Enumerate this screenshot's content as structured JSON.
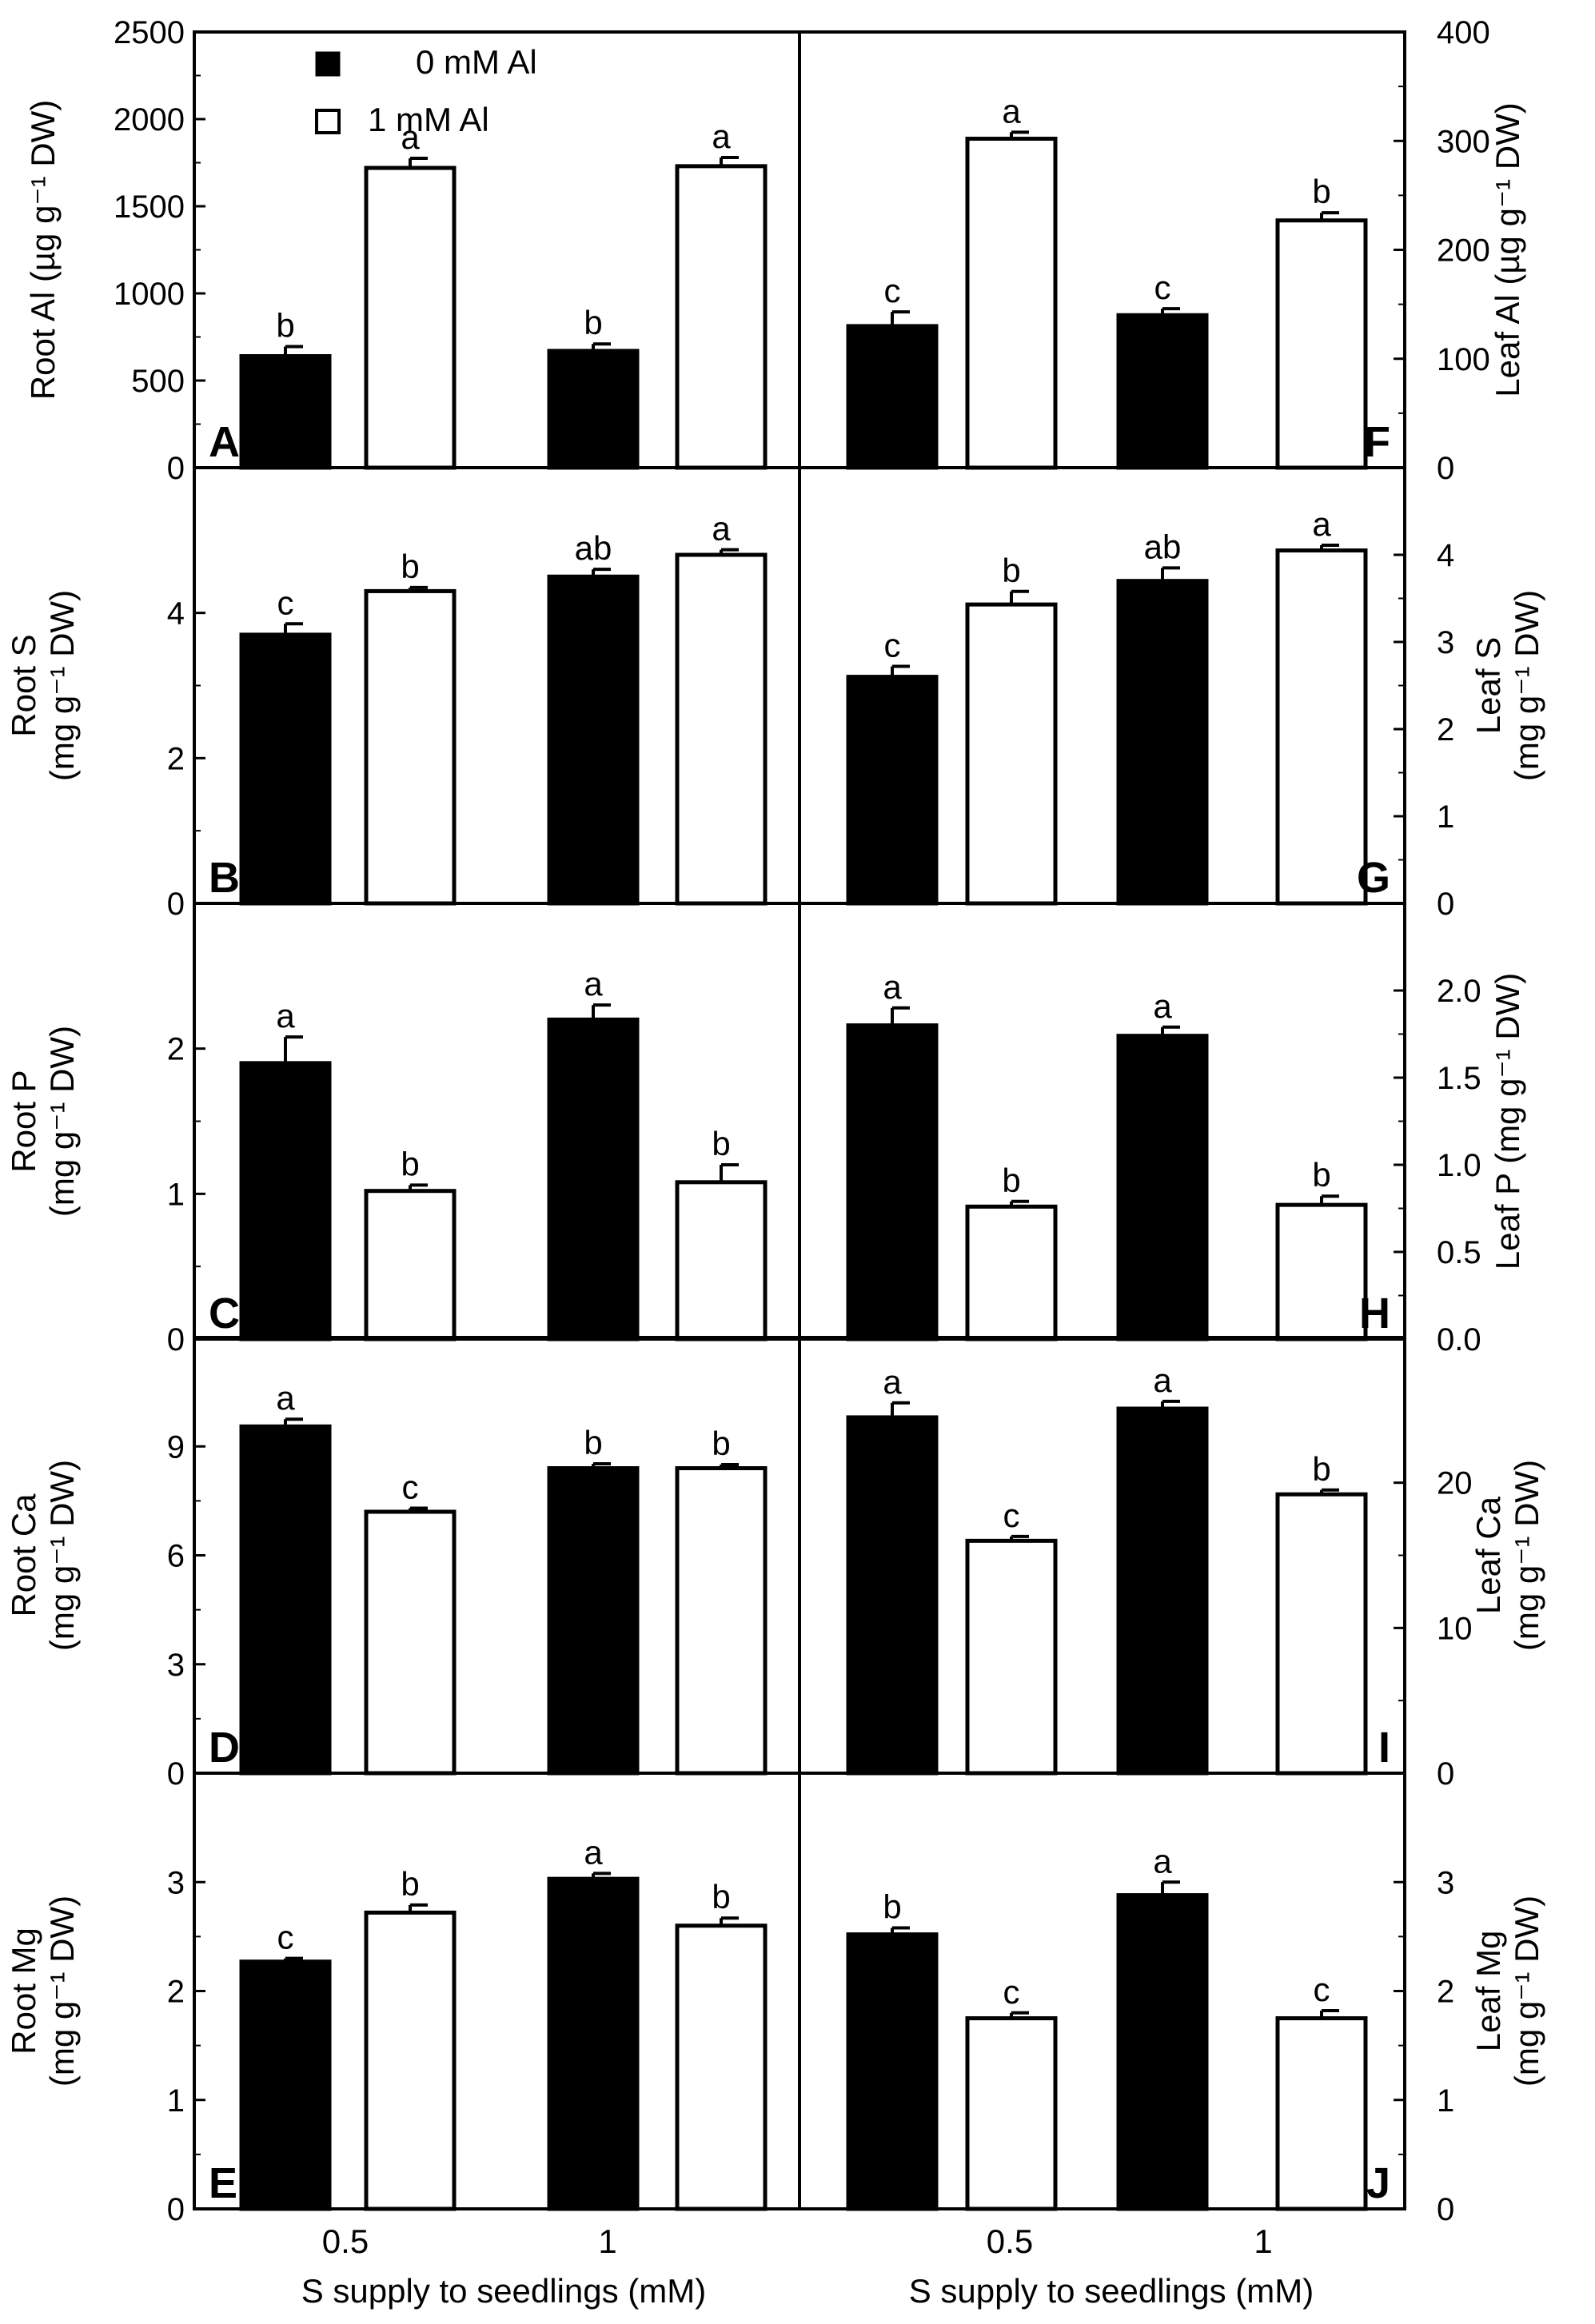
{
  "legend": [
    {
      "name": "0 mM Al",
      "fill": "#000000"
    },
    {
      "name": "1 mM Al",
      "fill": "#ffffff"
    }
  ],
  "x_categories": [
    "0.5",
    "1"
  ],
  "x_axis_title": "S supply to seedlings (mM)",
  "chart_data": [
    {
      "type": "bar",
      "panel": "A",
      "side": "left",
      "tissue": "Root",
      "ylabel_lines": [
        "Root Al (µg g⁻¹ DW)"
      ],
      "ylim": [
        0,
        2500
      ],
      "yticks": [
        "0",
        "500",
        "1000",
        "1500",
        "2000",
        "2500"
      ],
      "categories": [
        "0.5",
        "1"
      ],
      "series": [
        {
          "name": "0 mM Al",
          "values": [
            640,
            670
          ],
          "errors": [
            55,
            40
          ],
          "letters": [
            "b",
            "b"
          ]
        },
        {
          "name": "1 mM Al",
          "values": [
            1720,
            1730
          ],
          "errors": [
            55,
            50
          ],
          "letters": [
            "a",
            "a"
          ]
        }
      ]
    },
    {
      "type": "bar",
      "panel": "B",
      "side": "left",
      "tissue": "Root",
      "ylabel_lines": [
        "Root S",
        "(mg g⁻¹ DW)"
      ],
      "ylim": [
        0,
        6
      ],
      "yticks": [
        "0",
        "2",
        "4"
      ],
      "categories": [
        "0.5",
        "1"
      ],
      "series": [
        {
          "name": "0 mM Al",
          "values": [
            3.7,
            4.5
          ],
          "errors": [
            0.15,
            0.1
          ],
          "letters": [
            "c",
            "ab"
          ]
        },
        {
          "name": "1 mM Al",
          "values": [
            4.3,
            4.8
          ],
          "errors": [
            0.05,
            0.07
          ],
          "letters": [
            "b",
            "a"
          ]
        }
      ]
    },
    {
      "type": "bar",
      "panel": "C",
      "side": "left",
      "tissue": "Root",
      "ylabel_lines": [
        "Root P",
        "(mg g⁻¹ DW)"
      ],
      "ylim": [
        0,
        3
      ],
      "yticks": [
        "0",
        "1",
        "2"
      ],
      "categories": [
        "0.5",
        "1"
      ],
      "series": [
        {
          "name": "0 mM Al",
          "values": [
            1.9,
            2.2
          ],
          "errors": [
            0.18,
            0.1
          ],
          "letters": [
            "a",
            "a"
          ]
        },
        {
          "name": "1 mM Al",
          "values": [
            1.02,
            1.08
          ],
          "errors": [
            0.04,
            0.12
          ],
          "letters": [
            "b",
            "b"
          ]
        }
      ]
    },
    {
      "type": "bar",
      "panel": "D",
      "side": "left",
      "tissue": "Root",
      "ylabel_lines": [
        "Root Ca",
        "(mg g⁻¹ DW)"
      ],
      "ylim": [
        0,
        12
      ],
      "yticks": [
        "0",
        "3",
        "6",
        "9"
      ],
      "categories": [
        "0.5",
        "1"
      ],
      "series": [
        {
          "name": "0 mM Al",
          "values": [
            9.55,
            8.4
          ],
          "errors": [
            0.2,
            0.12
          ],
          "letters": [
            "a",
            "b"
          ]
        },
        {
          "name": "1 mM Al",
          "values": [
            7.2,
            8.4
          ],
          "errors": [
            0.1,
            0.1
          ],
          "letters": [
            "c",
            "b"
          ]
        }
      ]
    },
    {
      "type": "bar",
      "panel": "E",
      "side": "left",
      "tissue": "Root",
      "ylabel_lines": [
        "Root Mg",
        "(mg g⁻¹ DW)"
      ],
      "ylim": [
        0,
        4
      ],
      "yticks": [
        "0",
        "1",
        "2",
        "3"
      ],
      "categories": [
        "0.5",
        "1"
      ],
      "series": [
        {
          "name": "0 mM Al",
          "values": [
            2.27,
            3.03
          ],
          "errors": [
            0.03,
            0.05
          ],
          "letters": [
            "c",
            "a"
          ]
        },
        {
          "name": "1 mM Al",
          "values": [
            2.72,
            2.6
          ],
          "errors": [
            0.07,
            0.07
          ],
          "letters": [
            "b",
            "b"
          ]
        }
      ]
    },
    {
      "type": "bar",
      "panel": "F",
      "side": "right",
      "tissue": "Leaf",
      "ylabel_lines": [
        "Leaf Al (µg g⁻¹ DW)"
      ],
      "ylim": [
        0,
        400
      ],
      "yticks": [
        "0",
        "100",
        "200",
        "300",
        "400"
      ],
      "categories": [
        "0.5",
        "1"
      ],
      "series": [
        {
          "name": "0 mM Al",
          "values": [
            130,
            140
          ],
          "errors": [
            13,
            6
          ],
          "letters": [
            "c",
            "c"
          ]
        },
        {
          "name": "1 mM Al",
          "values": [
            302,
            227
          ],
          "errors": [
            6,
            7
          ],
          "letters": [
            "a",
            "b"
          ]
        }
      ]
    },
    {
      "type": "bar",
      "panel": "G",
      "side": "right",
      "tissue": "Leaf",
      "ylabel_lines": [
        "Leaf S",
        "(mg g⁻¹ DW)"
      ],
      "ylim": [
        0,
        5
      ],
      "yticks": [
        "0",
        "1",
        "2",
        "3",
        "4"
      ],
      "categories": [
        "0.5",
        "1"
      ],
      "series": [
        {
          "name": "0 mM Al",
          "values": [
            2.6,
            3.7
          ],
          "errors": [
            0.12,
            0.15
          ],
          "letters": [
            "c",
            "ab"
          ]
        },
        {
          "name": "1 mM Al",
          "values": [
            3.43,
            4.05
          ],
          "errors": [
            0.15,
            0.06
          ],
          "letters": [
            "b",
            "a"
          ]
        }
      ]
    },
    {
      "type": "bar",
      "panel": "H",
      "side": "right",
      "tissue": "Leaf",
      "ylabel_lines": [
        "Leaf P (mg g⁻¹ DW)"
      ],
      "ylim": [
        0,
        2.5
      ],
      "yticks": [
        "0.0",
        "0.5",
        "1.0",
        "1.5",
        "2.0"
      ],
      "categories": [
        "0.5",
        "1"
      ],
      "series": [
        {
          "name": "0 mM Al",
          "values": [
            1.8,
            1.74
          ],
          "errors": [
            0.1,
            0.05
          ],
          "letters": [
            "a",
            "a"
          ]
        },
        {
          "name": "1 mM Al",
          "values": [
            0.76,
            0.77
          ],
          "errors": [
            0.03,
            0.05
          ],
          "letters": [
            "b",
            "b"
          ]
        }
      ]
    },
    {
      "type": "bar",
      "panel": "I",
      "side": "right",
      "tissue": "Leaf",
      "ylabel_lines": [
        "Leaf Ca",
        "(mg g⁻¹ DW)"
      ],
      "ylim": [
        0,
        30
      ],
      "yticks": [
        "0",
        "10",
        "20"
      ],
      "categories": [
        "0.5",
        "1"
      ],
      "series": [
        {
          "name": "0 mM Al",
          "values": [
            24.5,
            25.1
          ],
          "errors": [
            1.0,
            0.5
          ],
          "letters": [
            "a",
            "a"
          ]
        },
        {
          "name": "1 mM Al",
          "values": [
            16.0,
            19.2
          ],
          "errors": [
            0.3,
            0.3
          ],
          "letters": [
            "c",
            "b"
          ]
        }
      ]
    },
    {
      "type": "bar",
      "panel": "J",
      "side": "right",
      "tissue": "Leaf",
      "ylabel_lines": [
        "Leaf Mg",
        "(mg g⁻¹ DW)"
      ],
      "ylim": [
        0,
        4
      ],
      "yticks": [
        "0",
        "1",
        "2",
        "3"
      ],
      "categories": [
        "0.5",
        "1"
      ],
      "series": [
        {
          "name": "0 mM Al",
          "values": [
            2.52,
            2.88
          ],
          "errors": [
            0.06,
            0.12
          ],
          "letters": [
            "b",
            "a"
          ]
        },
        {
          "name": "1 mM Al",
          "values": [
            1.75,
            1.75
          ],
          "errors": [
            0.05,
            0.07
          ],
          "letters": [
            "c",
            "c"
          ]
        }
      ]
    }
  ]
}
